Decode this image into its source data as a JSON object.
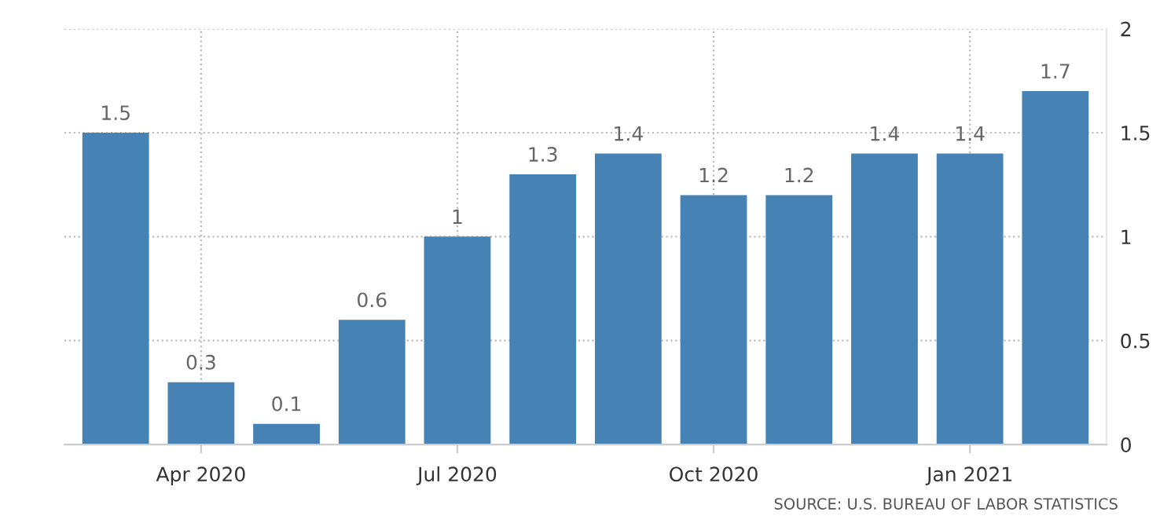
{
  "chart_data": {
    "type": "bar",
    "categories": [
      null,
      "Apr 2020",
      null,
      null,
      "Jul 2020",
      null,
      null,
      "Oct 2020",
      null,
      null,
      "Jan 2021",
      null
    ],
    "values": [
      1.5,
      0.3,
      0.1,
      0.6,
      1,
      1.3,
      1.4,
      1.2,
      1.2,
      1.4,
      1.4,
      1.7
    ],
    "color": "#4682b4",
    "ylim": [
      0,
      2
    ],
    "yticks": [
      0,
      0.5,
      1,
      1.5,
      2
    ],
    "grid": true,
    "data_labels": true,
    "annotations": [
      "SOURCE: U.S. BUREAU OF LABOR STATISTICS"
    ]
  }
}
